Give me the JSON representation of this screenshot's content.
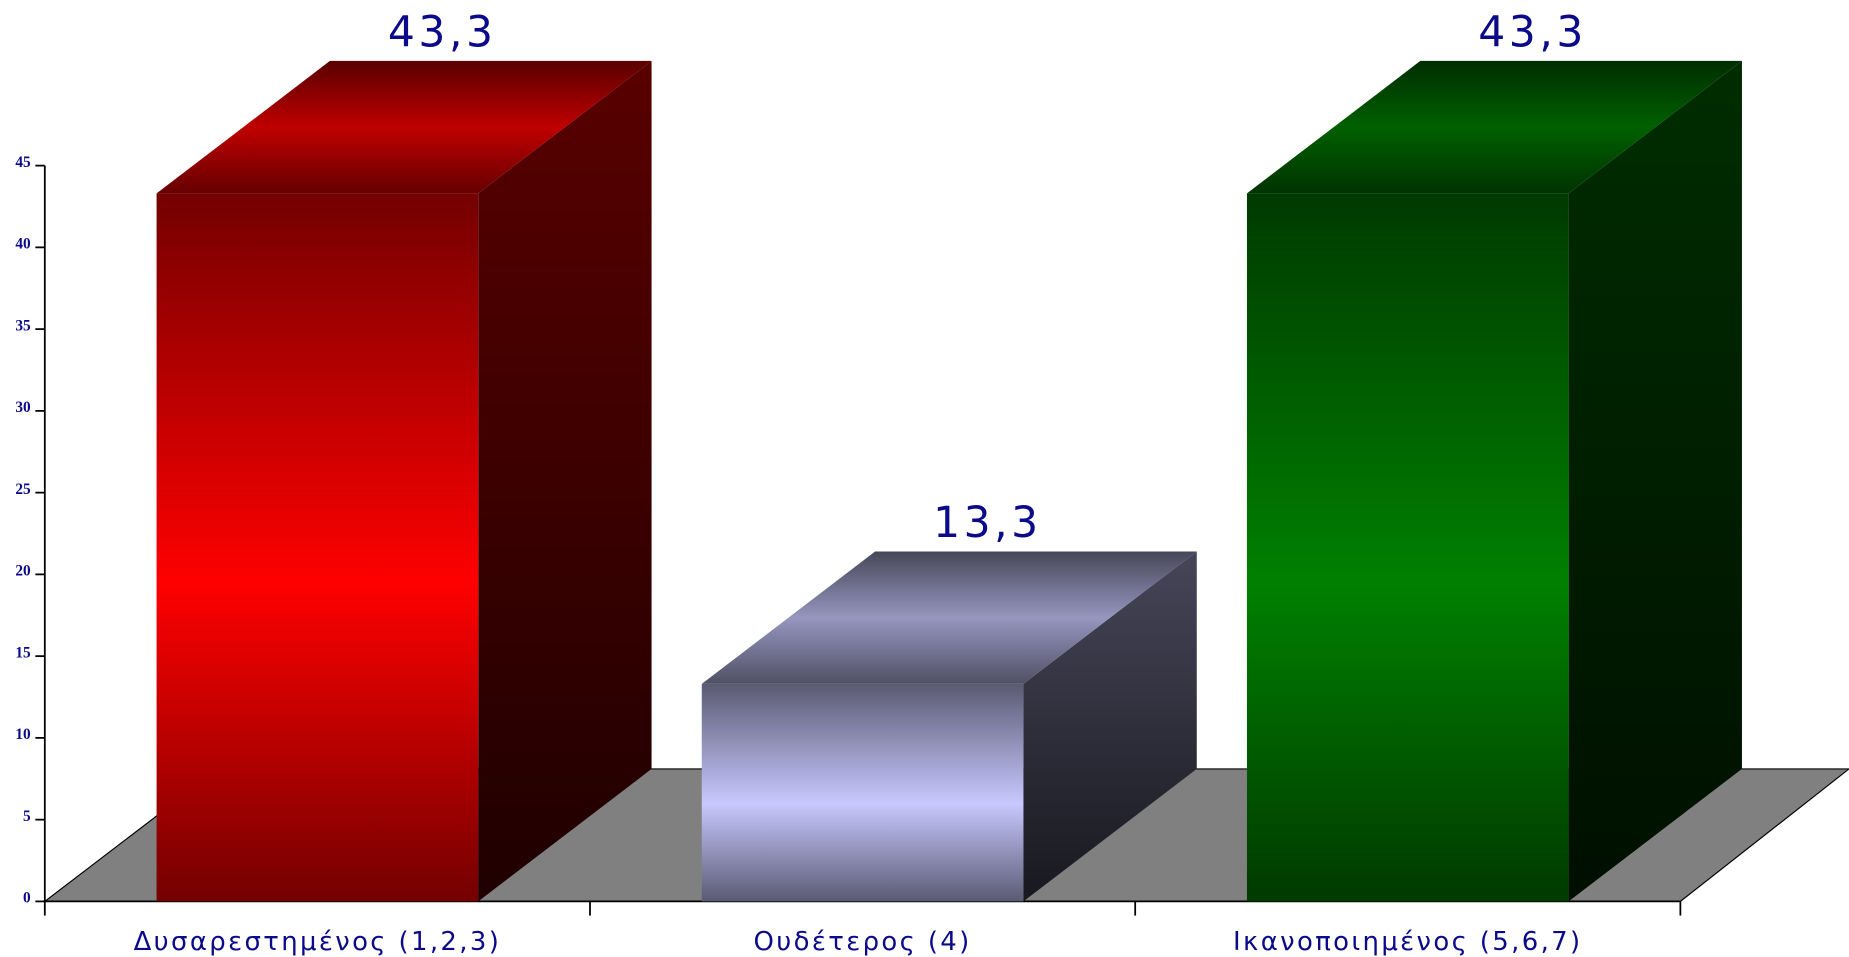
{
  "chart_data": {
    "type": "bar3d",
    "categories": [
      "Δυσαρεστημένος (1,2,3)",
      "Ουδέτερος (4)",
      "Ικανοποιημένος (5,6,7)"
    ],
    "values": [
      43.3,
      13.3,
      43.3
    ],
    "value_labels": [
      "43,3",
      "13,3",
      "43,3"
    ],
    "colors": [
      "#ff0000",
      "#c8c8ff",
      "#008000"
    ],
    "floor_color": "#808080",
    "ylim": [
      0,
      45
    ],
    "yticks": [
      0,
      5,
      10,
      15,
      20,
      25,
      30,
      35,
      40,
      45
    ]
  }
}
